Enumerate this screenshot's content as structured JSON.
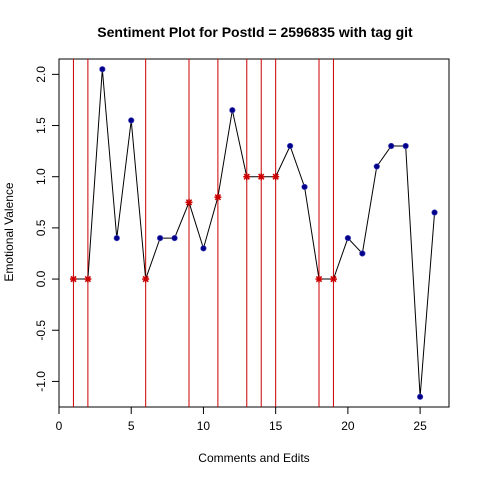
{
  "chart_data": {
    "type": "line",
    "title": "Sentiment Plot for PostId =  2596835  with tag  git",
    "xlabel": "Comments and Edits",
    "ylabel": "Emotional Valence",
    "xlim": [
      0,
      27
    ],
    "ylim": [
      -1.25,
      2.15
    ],
    "x_ticks": [
      0,
      5,
      10,
      15,
      20,
      25
    ],
    "y_ticks": [
      -1.0,
      -0.5,
      0.0,
      0.5,
      1.0,
      1.5,
      2.0
    ],
    "x_tick_labels": [
      "0",
      "5",
      "10",
      "15",
      "20",
      "25"
    ],
    "y_tick_labels": [
      "-1.0",
      "-0.5",
      "0.0",
      "0.5",
      "1.0",
      "1.5",
      "2.0"
    ],
    "grid": false,
    "colors": {
      "line": "#000000",
      "comment_point": "#00008B",
      "edit_point": "#CC0000",
      "edit_line": "#CC0000"
    },
    "series": [
      {
        "x": [
          1,
          2,
          3,
          4,
          5,
          6,
          7,
          8,
          9,
          10,
          11,
          12,
          13,
          14,
          15,
          16,
          17,
          18,
          19,
          20,
          21,
          22,
          23,
          24,
          25,
          26
        ],
        "values": [
          0.0,
          0.0,
          2.05,
          0.4,
          1.55,
          0.0,
          0.4,
          0.4,
          0.75,
          0.3,
          0.8,
          1.65,
          1.0,
          1.0,
          1.0,
          1.3,
          0.9,
          0.0,
          0.0,
          0.4,
          0.25,
          1.1,
          1.3,
          1.3,
          -1.15,
          0.65
        ],
        "point_types": [
          "edit",
          "edit",
          "comment",
          "comment",
          "comment",
          "edit",
          "comment",
          "comment",
          "edit",
          "comment",
          "edit",
          "comment",
          "edit",
          "edit",
          "edit",
          "comment",
          "comment",
          "edit",
          "edit",
          "comment",
          "comment",
          "comment",
          "comment",
          "comment",
          "comment",
          "comment"
        ]
      }
    ],
    "edit_lines": [
      1,
      2,
      6,
      9,
      11,
      13,
      14,
      15,
      18,
      19
    ]
  }
}
